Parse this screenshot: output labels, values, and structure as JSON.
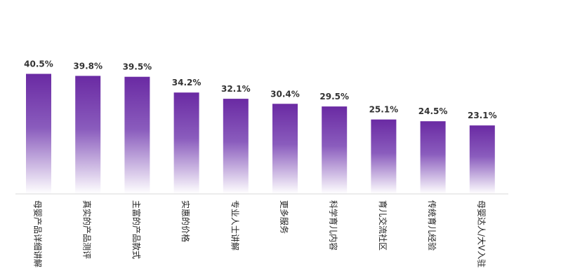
{
  "chart_data": {
    "type": "bar",
    "title": "",
    "xlabel": "",
    "ylabel": "",
    "ylim": [
      0,
      45
    ],
    "grid": false,
    "value_suffix": "%",
    "categories": [
      "母婴产品详细讲解",
      "真实的产品测评",
      "主富的产品款式",
      "实惠的价格",
      "专业人士讲解",
      "更多服务",
      "科学育儿内容",
      "育儿交流社区",
      "传统育儿经验",
      "母婴达人/大V入驻"
    ],
    "values": [
      40.5,
      39.8,
      39.5,
      34.2,
      32.1,
      30.4,
      29.5,
      25.1,
      24.5,
      23.1
    ],
    "value_labels": [
      "40.5%",
      "39.8%",
      "39.5%",
      "34.2%",
      "32.1%",
      "30.4%",
      "29.5%",
      "25.1%",
      "24.5%",
      "23.1%"
    ],
    "colors": {
      "bar_top": "#6a2aa3",
      "bar_bottom": "#ffffff",
      "axis": "#d9d9d9",
      "text": "#333333"
    }
  }
}
